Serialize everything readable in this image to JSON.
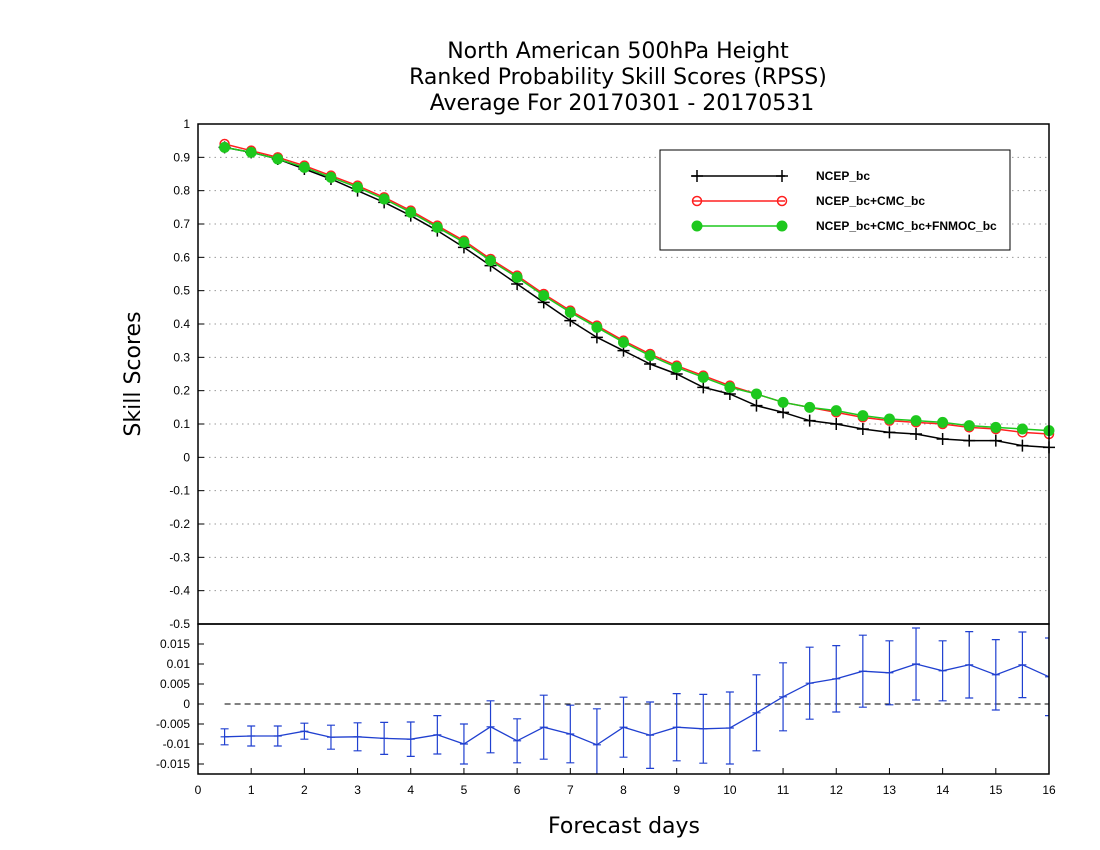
{
  "chart_data": {
    "type": "line",
    "title_lines": [
      "North American 500hPa Height",
      "Ranked Probability Skill Scores (RPSS)",
      "Average For 20170301 - 20170531"
    ],
    "xlabel": "Forecast days",
    "ylabel": "Skill Scores",
    "xlim": [
      0,
      16
    ],
    "x_ticks": [
      "0",
      "1",
      "2",
      "3",
      "4",
      "5",
      "6",
      "7",
      "8",
      "9",
      "10",
      "11",
      "12",
      "13",
      "14",
      "15",
      "16"
    ],
    "x": [
      0.5,
      1,
      1.5,
      2,
      2.5,
      3,
      3.5,
      4,
      4.5,
      5,
      5.5,
      6,
      6.5,
      7,
      7.5,
      8,
      8.5,
      9,
      9.5,
      10,
      10.5,
      11,
      11.5,
      12,
      12.5,
      13,
      13.5,
      14,
      14.5,
      15,
      15.5,
      16
    ],
    "top_panel": {
      "ylim": [
        -0.5,
        1
      ],
      "y_ticks": [
        "1",
        "0.9",
        "0.8",
        "0.7",
        "0.6",
        "0.5",
        "0.4",
        "0.3",
        "0.2",
        "0.1",
        "0",
        "-0.1",
        "-0.2",
        "-0.3",
        "-0.4",
        "-0.5"
      ],
      "grid": true,
      "legend_position": "top-right",
      "series": [
        {
          "name": "NCEP_bc",
          "color": "#000000",
          "marker": "plus",
          "values": [
            0.93,
            0.915,
            0.895,
            0.865,
            0.835,
            0.8,
            0.765,
            0.725,
            0.68,
            0.63,
            0.575,
            0.52,
            0.465,
            0.41,
            0.36,
            0.32,
            0.28,
            0.25,
            0.21,
            0.19,
            0.155,
            0.135,
            0.11,
            0.1,
            0.085,
            0.075,
            0.07,
            0.055,
            0.05,
            0.05,
            0.035,
            0.03
          ]
        },
        {
          "name": "NCEP_bc+CMC_bc",
          "color": "#ff2020",
          "marker": "open-circle",
          "values": [
            0.94,
            0.92,
            0.9,
            0.875,
            0.845,
            0.815,
            0.78,
            0.74,
            0.695,
            0.65,
            0.595,
            0.545,
            0.49,
            0.44,
            0.395,
            0.35,
            0.31,
            0.275,
            0.245,
            0.215,
            0.19,
            0.165,
            0.15,
            0.135,
            0.12,
            0.11,
            0.105,
            0.1,
            0.09,
            0.085,
            0.075,
            0.07
          ]
        },
        {
          "name": "NCEP_bc+CMC_bc+FNMOC_bc",
          "color": "#1ec81e",
          "marker": "filled-circle",
          "values": [
            0.93,
            0.915,
            0.895,
            0.87,
            0.84,
            0.81,
            0.775,
            0.735,
            0.69,
            0.645,
            0.59,
            0.54,
            0.485,
            0.435,
            0.39,
            0.345,
            0.305,
            0.27,
            0.24,
            0.21,
            0.19,
            0.165,
            0.15,
            0.14,
            0.125,
            0.115,
            0.11,
            0.105,
            0.095,
            0.09,
            0.085,
            0.08
          ]
        }
      ]
    },
    "bottom_panel": {
      "ylim": [
        -0.0175,
        0.02
      ],
      "y_ticks": [
        "0.015",
        "0.01",
        "0.005",
        "0",
        "-0.005",
        "-0.01",
        "-0.015"
      ],
      "zero_line": "dashed",
      "series": [
        {
          "color": "#2040d0",
          "marker": "error-bar",
          "values": [
            -0.0082,
            -0.008,
            -0.008,
            -0.0068,
            -0.0083,
            -0.0082,
            -0.0086,
            -0.0088,
            -0.0077,
            -0.01,
            -0.0057,
            -0.0092,
            -0.0058,
            -0.0075,
            -0.0102,
            -0.0058,
            -0.0078,
            -0.0058,
            -0.0062,
            -0.006,
            -0.0022,
            0.0018,
            0.0052,
            0.0063,
            0.0082,
            0.0078,
            0.01,
            0.0083,
            0.0098,
            0.0073,
            0.0098,
            0.0068
          ],
          "errors": [
            0.002,
            0.0025,
            0.0025,
            0.002,
            0.003,
            0.0035,
            0.004,
            0.0043,
            0.0048,
            0.005,
            0.0065,
            0.0055,
            0.008,
            0.0072,
            0.009,
            0.0075,
            0.0083,
            0.0084,
            0.0086,
            0.009,
            0.0095,
            0.0085,
            0.009,
            0.0083,
            0.009,
            0.008,
            0.009,
            0.0075,
            0.0083,
            0.0088,
            0.0082,
            0.0097
          ]
        }
      ]
    }
  }
}
